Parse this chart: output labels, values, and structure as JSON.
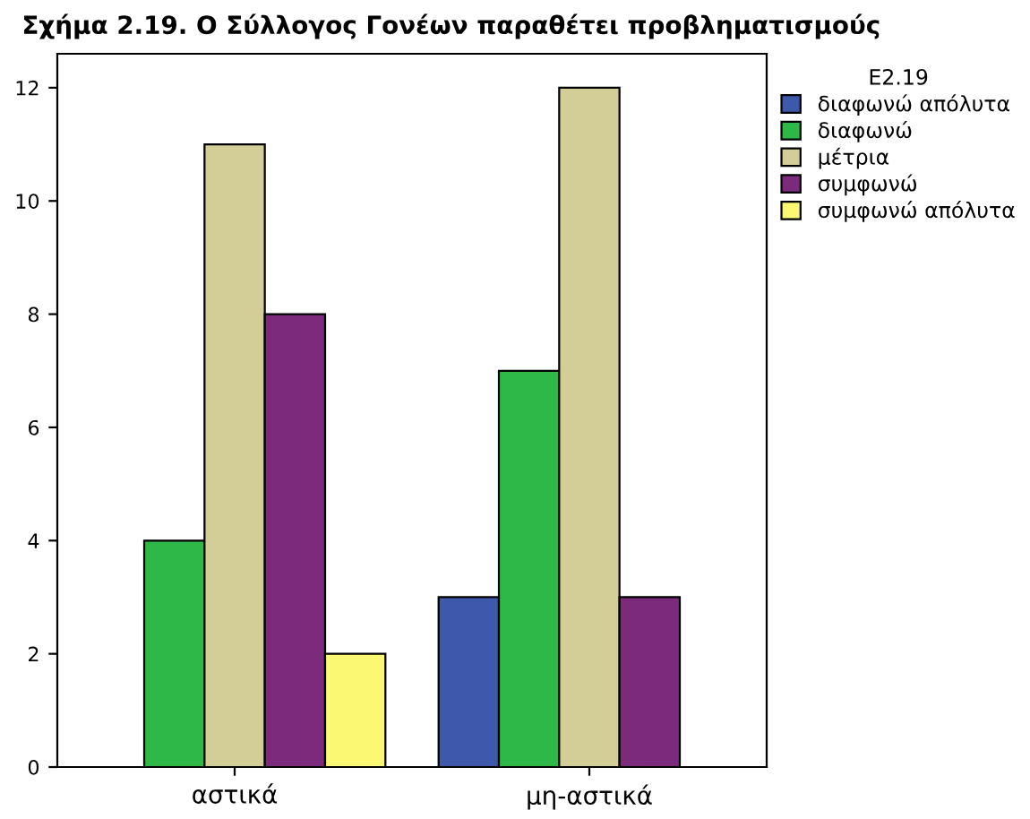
{
  "chart_data": {
    "type": "bar",
    "title": "Σχήμα 2.19. Ο Σύλλογος Γονέων παραθέτει προβληματισμούς",
    "categories": [
      "αστικά",
      "μη-αστικά"
    ],
    "series": [
      {
        "name": "διαφωνώ απόλυτα",
        "color": "#3e58ac",
        "values": [
          null,
          3
        ]
      },
      {
        "name": "διαφωνώ",
        "color": "#2eb848",
        "values": [
          4,
          7
        ]
      },
      {
        "name": "μέτρια",
        "color": "#d3ce97",
        "values": [
          11,
          12
        ]
      },
      {
        "name": "συμφωνώ",
        "color": "#7b2a7c",
        "values": [
          8,
          3
        ]
      },
      {
        "name": "συμφωνώ απόλυτα",
        "color": "#fbf873",
        "values": [
          2,
          null
        ]
      }
    ],
    "legend_title": "Ε2.19",
    "legend": "right",
    "ylim": [
      0,
      12.6
    ],
    "yticks": [
      0,
      2,
      4,
      6,
      8,
      10,
      12
    ],
    "grid": false
  }
}
